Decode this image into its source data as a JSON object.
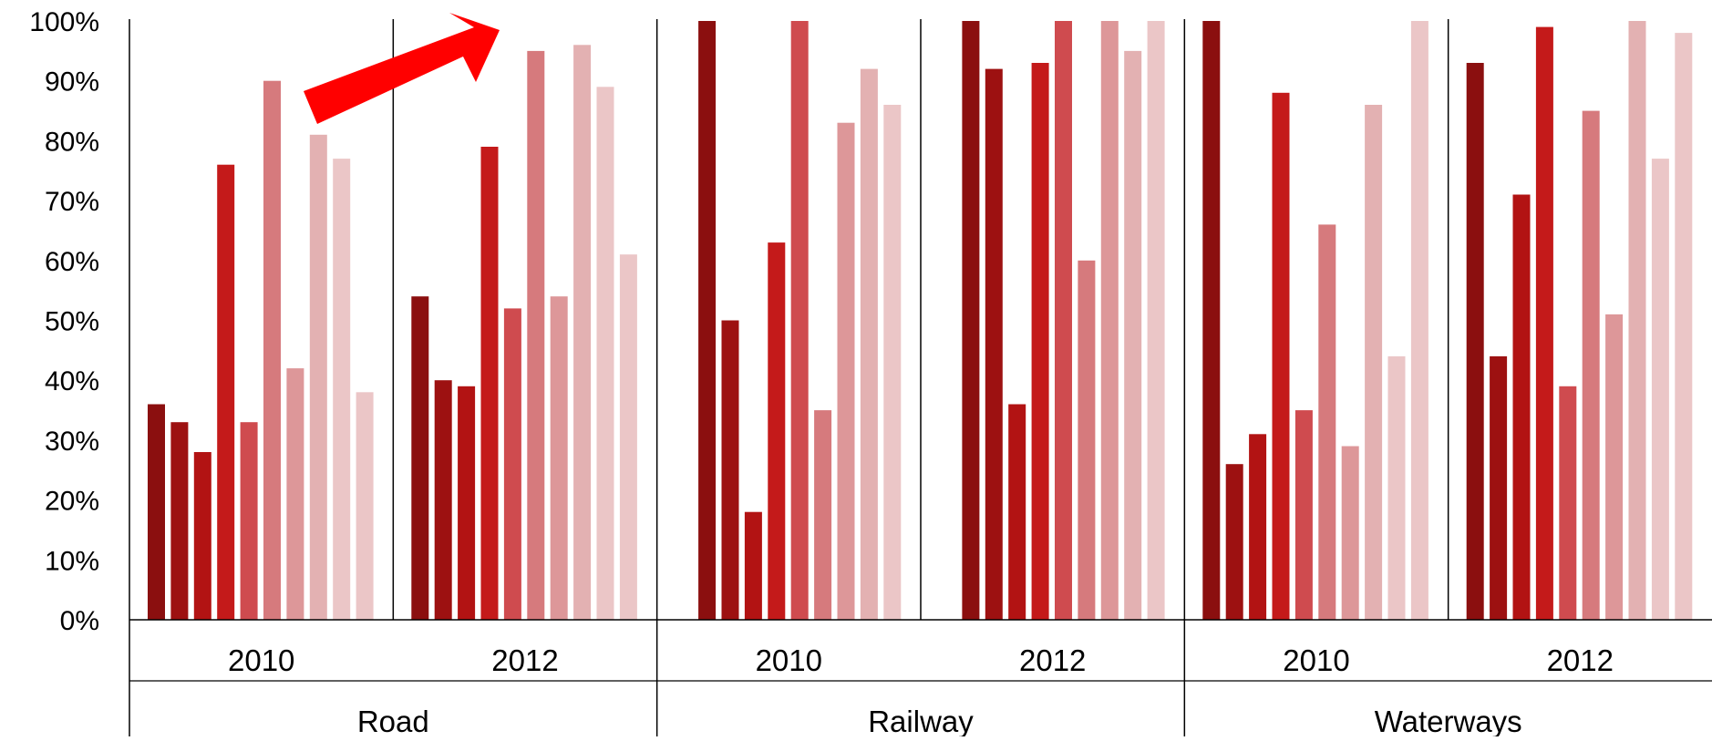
{
  "chart_data": {
    "type": "bar",
    "ylim": [
      0,
      100
    ],
    "y_ticks": [
      {
        "value": 0,
        "label": "0%"
      },
      {
        "value": 10,
        "label": "10%"
      },
      {
        "value": 20,
        "label": "20%"
      },
      {
        "value": 30,
        "label": "30%"
      },
      {
        "value": 40,
        "label": "40%"
      },
      {
        "value": 50,
        "label": "50%"
      },
      {
        "value": 60,
        "label": "60%"
      },
      {
        "value": 70,
        "label": "70%"
      },
      {
        "value": 80,
        "label": "80%"
      },
      {
        "value": 90,
        "label": "90%"
      },
      {
        "value": 100,
        "label": "100%"
      }
    ],
    "grid": false,
    "legend": "none",
    "series_colors": [
      "#8b0f0f",
      "#9d1111",
      "#b21313",
      "#c41a1a",
      "#cf4b4f",
      "#d67a7d",
      "#dd9799",
      "#e3b1b2",
      "#ebc6c7"
    ],
    "annotation": {
      "type": "arrow",
      "meaning": "upward trend",
      "color": "#ff0000"
    },
    "groups": [
      {
        "label": "Road",
        "subgroups": [
          {
            "label": "2010",
            "values": [
              36,
              33,
              28,
              76,
              33,
              90,
              42,
              81,
              77,
              38
            ]
          },
          {
            "label": "2012",
            "values": [
              54,
              40,
              39,
              79,
              52,
              95,
              54,
              96,
              89,
              61
            ]
          }
        ]
      },
      {
        "label": "Railway",
        "subgroups": [
          {
            "label": "2010",
            "values": [
              100,
              50,
              18,
              63,
              100,
              35,
              83,
              92,
              86
            ]
          },
          {
            "label": "2012",
            "values": [
              100,
              92,
              36,
              93,
              100,
              60,
              100,
              95,
              100
            ]
          }
        ]
      },
      {
        "label": "Waterways",
        "subgroups": [
          {
            "label": "2010",
            "values": [
              100,
              26,
              31,
              88,
              35,
              66,
              29,
              86,
              44,
              100
            ]
          },
          {
            "label": "2012",
            "values": [
              93,
              44,
              71,
              99,
              39,
              85,
              51,
              100,
              77,
              98
            ]
          }
        ]
      }
    ]
  }
}
